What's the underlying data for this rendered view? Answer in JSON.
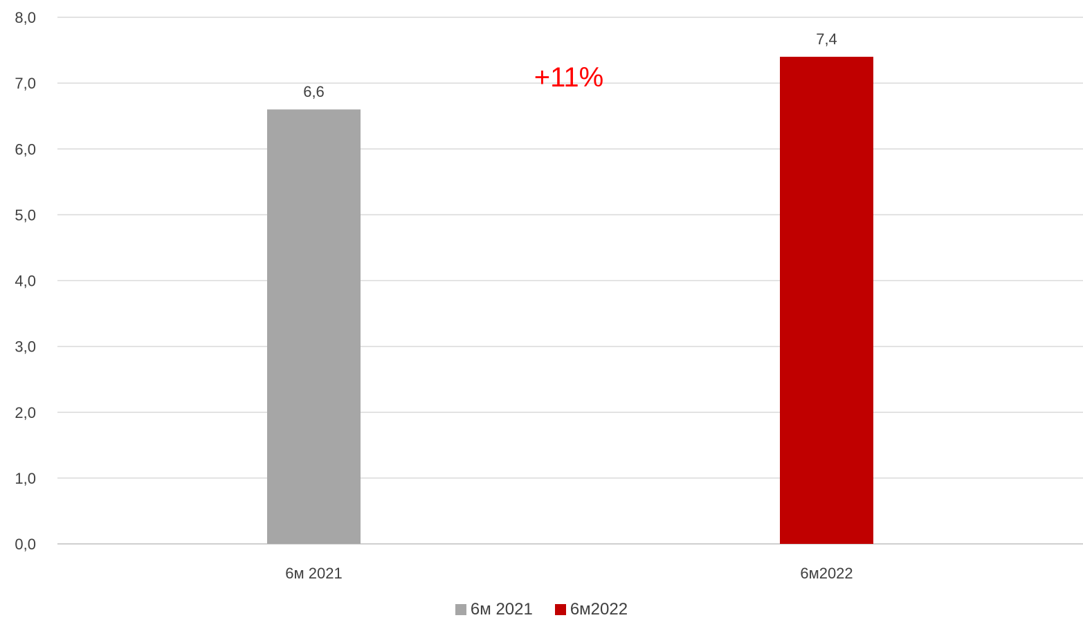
{
  "chart_data": {
    "type": "bar",
    "categories": [
      "6м 2021",
      "6м2022"
    ],
    "series": [
      {
        "name": "6м 2021",
        "color": "#a6a6a6",
        "values": [
          6.6,
          null
        ]
      },
      {
        "name": "6м2022",
        "color": "#c00000",
        "values": [
          null,
          7.4
        ]
      }
    ],
    "data_labels": [
      "6,6",
      "7,4"
    ],
    "y_ticks": [
      "0,0",
      "1,0",
      "2,0",
      "3,0",
      "4,0",
      "5,0",
      "6,0",
      "7,0",
      "8,0"
    ],
    "ylim": [
      0,
      8
    ],
    "grid": true,
    "legend_position": "bottom",
    "annotation": {
      "text": "+11%",
      "color": "#ff0000"
    }
  }
}
